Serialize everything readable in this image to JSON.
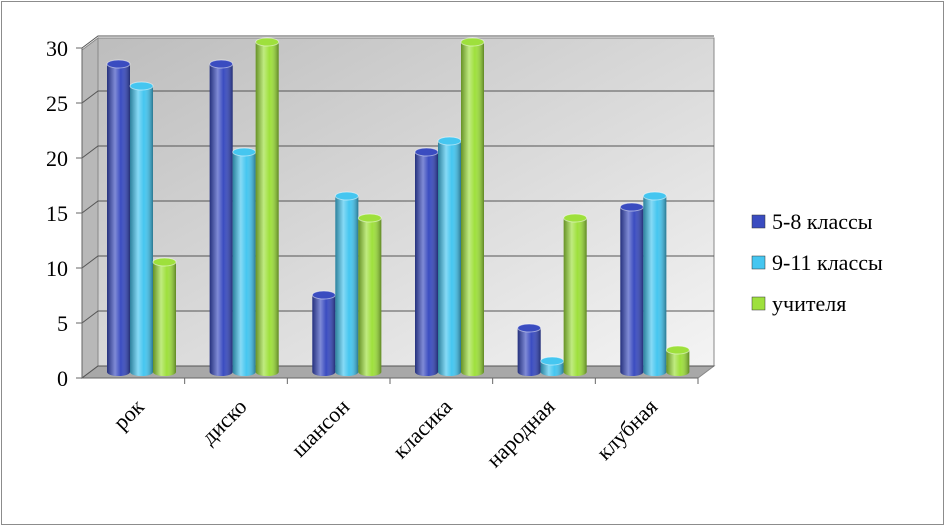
{
  "chart_data": {
    "type": "bar",
    "categories": [
      "рок",
      "диско",
      "шансон",
      "класика",
      "народная",
      "клубная"
    ],
    "series": [
      {
        "name": "5-8 классы",
        "color": "#3a4cc0",
        "values": [
          28,
          28,
          7,
          20,
          4,
          15
        ]
      },
      {
        "name": "9-11 классы",
        "color": "#45c6f0",
        "values": [
          26,
          20,
          16,
          21,
          1,
          16
        ]
      },
      {
        "name": "учителя",
        "color": "#9ee03c",
        "values": [
          10,
          30,
          14,
          30,
          14,
          2
        ]
      }
    ],
    "ylim": [
      0,
      30
    ],
    "yticks": [
      0,
      5,
      10,
      15,
      20,
      25,
      30
    ],
    "grid": true,
    "legend": "right"
  }
}
